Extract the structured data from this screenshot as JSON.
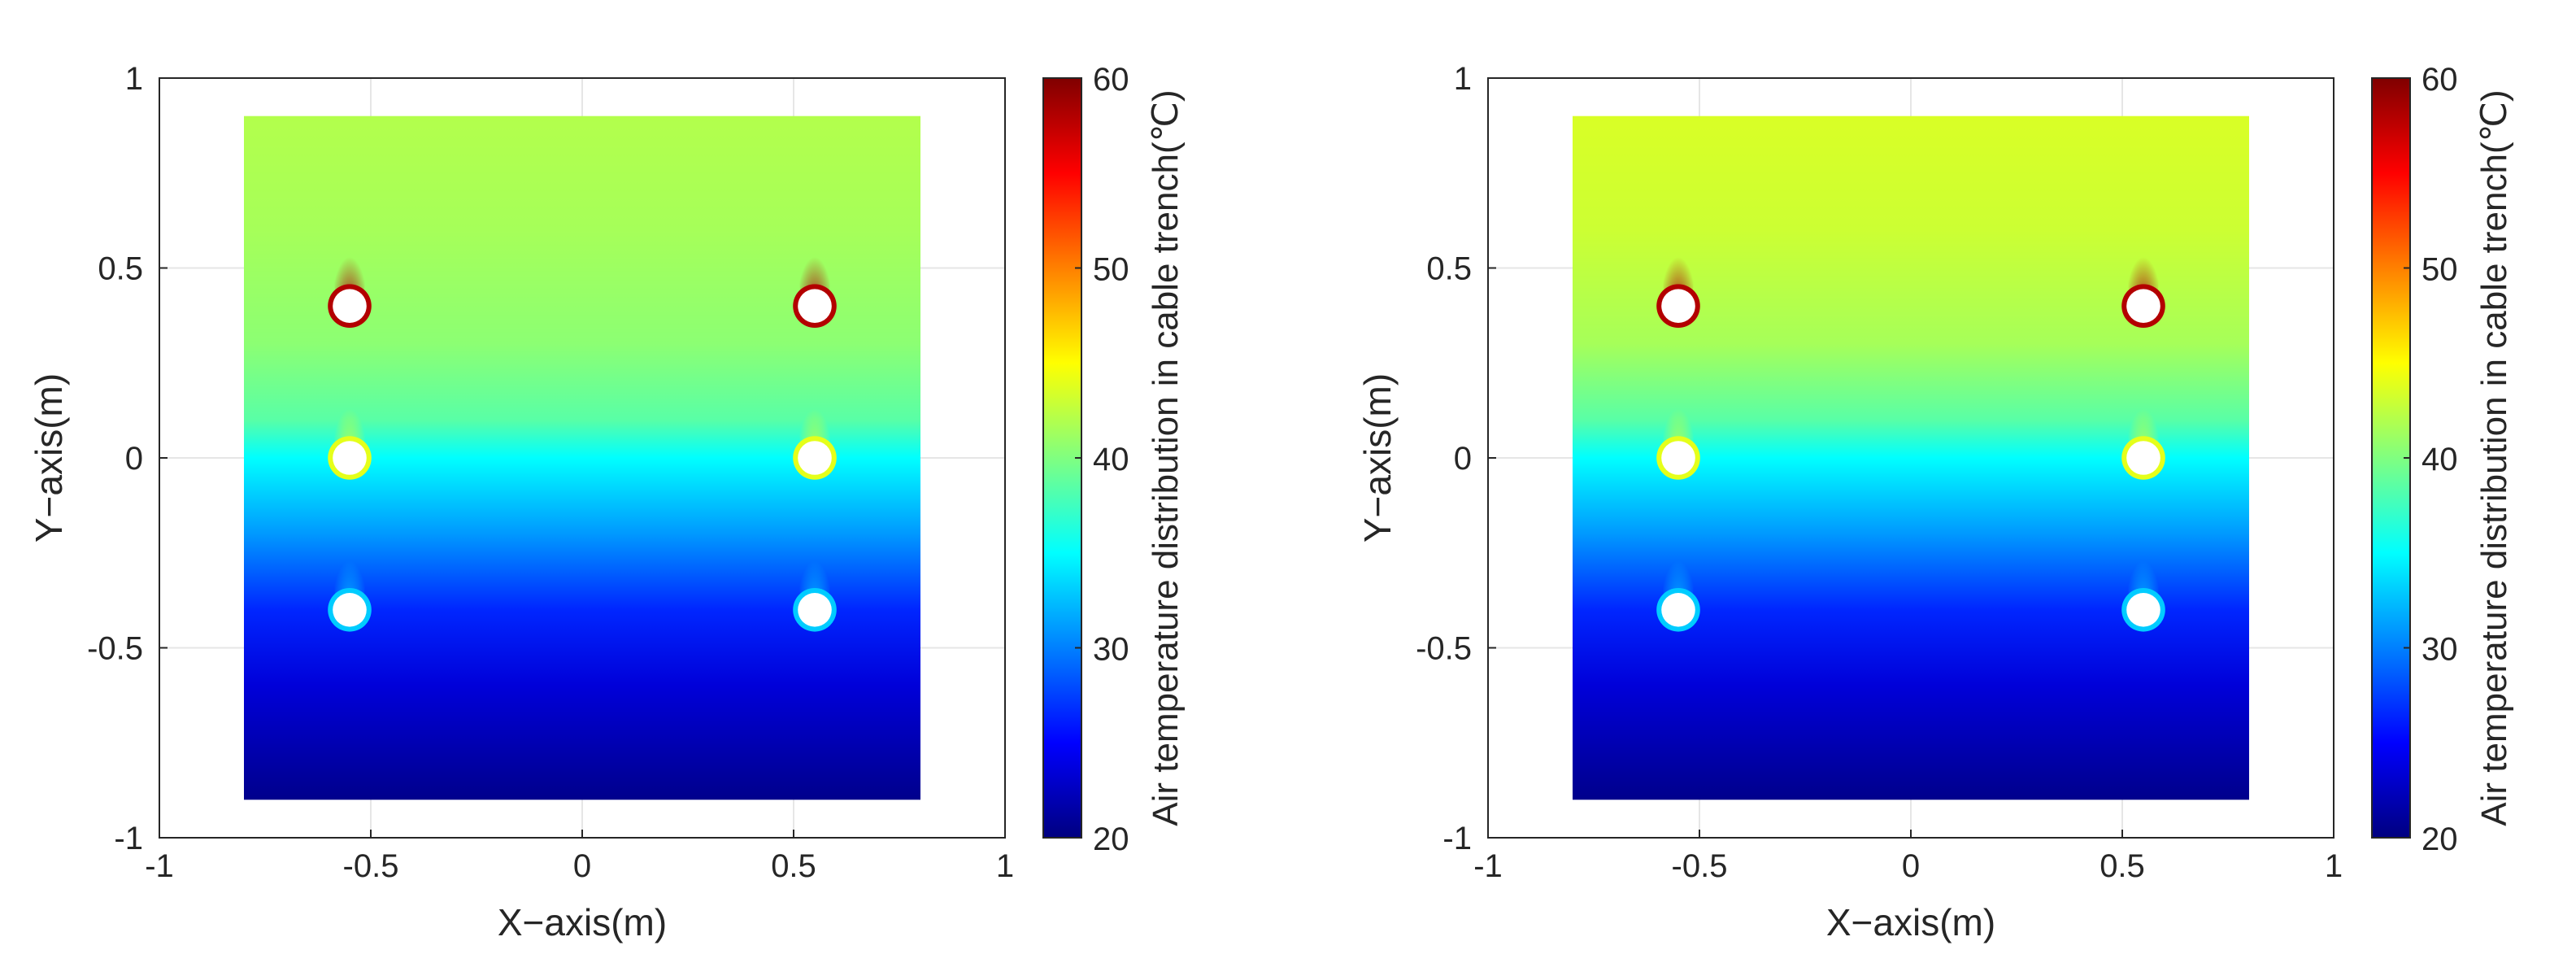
{
  "chart_data": [
    {
      "type": "heatmap",
      "panel": "left",
      "xlabel": "X−axis(m)",
      "ylabel": "Y−axis(m)",
      "xlim": [
        -1,
        1
      ],
      "ylim": [
        -1,
        1
      ],
      "xticks": [
        -1,
        -0.5,
        0,
        0.5,
        1
      ],
      "xtick_labels": [
        "-1",
        "-0.5",
        "0",
        "0.5",
        "1"
      ],
      "yticks": [
        -1,
        -0.5,
        0,
        0.5,
        1
      ],
      "ytick_labels": [
        "-1",
        "-0.5",
        "0",
        "0.5",
        "1"
      ],
      "grid": true,
      "colormap": "jet",
      "domain": {
        "x": [
          -0.8,
          0.8
        ],
        "y": [
          -0.9,
          0.9
        ]
      },
      "colorbar": {
        "label": "Air temperature distribution in cable trench(℃)",
        "range": [
          20,
          60
        ],
        "ticks": [
          20,
          30,
          40,
          50,
          60
        ],
        "tick_labels": [
          "20",
          "30",
          "40",
          "50",
          "60"
        ]
      },
      "temperature_profile": [
        {
          "y": -0.9,
          "t": 20.5
        },
        {
          "y": -0.6,
          "t": 23.5
        },
        {
          "y": -0.4,
          "t": 26.5
        },
        {
          "y": -0.2,
          "t": 31.0
        },
        {
          "y": 0.0,
          "t": 35.0
        },
        {
          "y": 0.1,
          "t": 38.5
        },
        {
          "y": 0.3,
          "t": 40.5
        },
        {
          "y": 0.6,
          "t": 41.5
        },
        {
          "y": 0.9,
          "t": 42.0
        }
      ],
      "cables": [
        {
          "x": -0.55,
          "y": 0.4,
          "t": 58
        },
        {
          "x": 0.55,
          "y": 0.4,
          "t": 58
        },
        {
          "x": -0.55,
          "y": 0.0,
          "t": 44
        },
        {
          "x": 0.55,
          "y": 0.0,
          "t": 44
        },
        {
          "x": -0.55,
          "y": -0.4,
          "t": 33
        },
        {
          "x": 0.55,
          "y": -0.4,
          "t": 33
        }
      ],
      "cable_radius": 0.04
    },
    {
      "type": "heatmap",
      "panel": "right",
      "xlabel": "X−axis(m)",
      "ylabel": "Y−axis(m)",
      "xlim": [
        -1,
        1
      ],
      "ylim": [
        -1,
        1
      ],
      "xticks": [
        -1,
        -0.5,
        0,
        0.5,
        1
      ],
      "xtick_labels": [
        "-1",
        "-0.5",
        "0",
        "0.5",
        "1"
      ],
      "yticks": [
        -1,
        -0.5,
        0,
        0.5,
        1
      ],
      "ytick_labels": [
        "-1",
        "-0.5",
        "0",
        "0.5",
        "1"
      ],
      "grid": true,
      "colormap": "jet",
      "domain": {
        "x": [
          -0.8,
          0.8
        ],
        "y": [
          -0.9,
          0.9
        ]
      },
      "colorbar": {
        "label": "Air temperature distribution in cable trench(℃)",
        "range": [
          20,
          60
        ],
        "ticks": [
          20,
          30,
          40,
          50,
          60
        ],
        "tick_labels": [
          "20",
          "30",
          "40",
          "50",
          "60"
        ]
      },
      "temperature_profile": [
        {
          "y": -0.9,
          "t": 20.5
        },
        {
          "y": -0.6,
          "t": 23.5
        },
        {
          "y": -0.4,
          "t": 26.5
        },
        {
          "y": -0.2,
          "t": 31.0
        },
        {
          "y": 0.0,
          "t": 35.0
        },
        {
          "y": 0.1,
          "t": 38.5
        },
        {
          "y": 0.3,
          "t": 41.5
        },
        {
          "y": 0.6,
          "t": 43.0
        },
        {
          "y": 0.9,
          "t": 43.5
        }
      ],
      "cables": [
        {
          "x": -0.55,
          "y": 0.4,
          "t": 58
        },
        {
          "x": 0.55,
          "y": 0.4,
          "t": 58
        },
        {
          "x": -0.55,
          "y": 0.0,
          "t": 44
        },
        {
          "x": 0.55,
          "y": 0.0,
          "t": 44
        },
        {
          "x": -0.55,
          "y": -0.4,
          "t": 33
        },
        {
          "x": 0.55,
          "y": -0.4,
          "t": 33
        }
      ],
      "cable_radius": 0.04
    }
  ]
}
